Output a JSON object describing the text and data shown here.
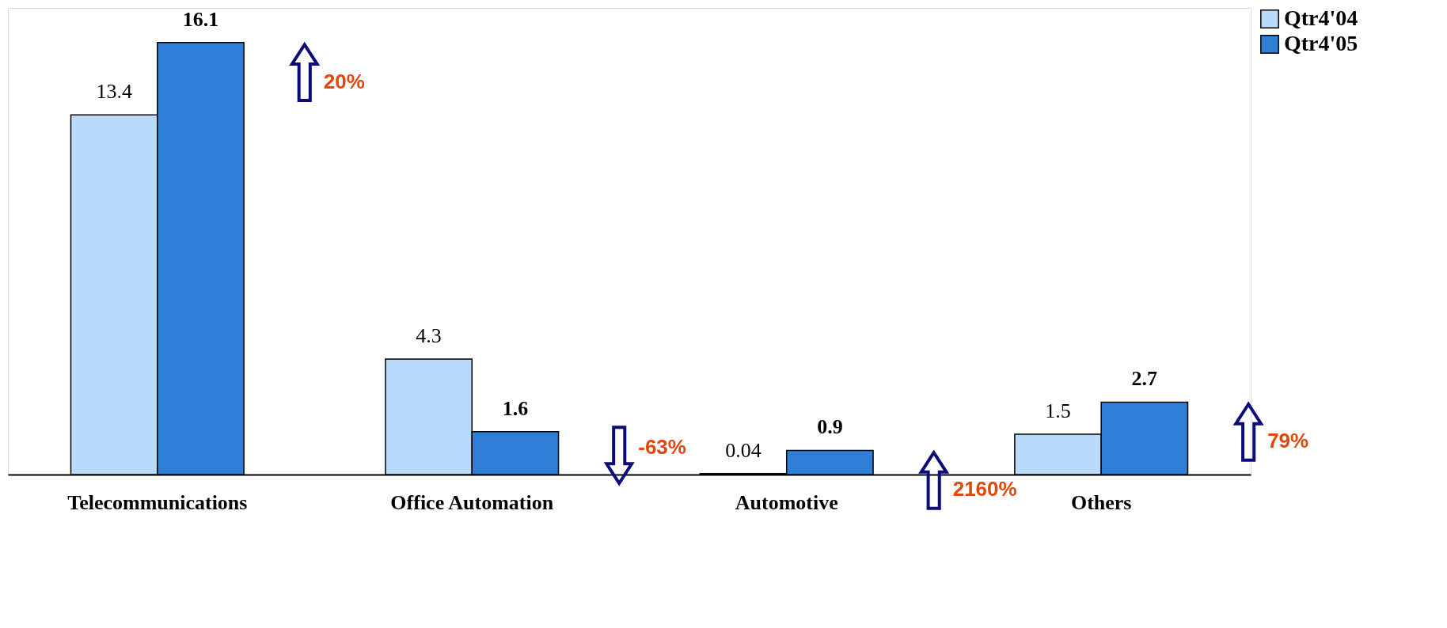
{
  "chart_data": {
    "type": "bar",
    "categories": [
      "Telecommunications",
      "Office Automation",
      "Automotive",
      "Others"
    ],
    "series": [
      {
        "name": "Qtr4'04",
        "color": "#b9dafb",
        "values": [
          13.4,
          4.3,
          0.04,
          1.5
        ]
      },
      {
        "name": "Qtr4'05",
        "color": "#2f7fd6",
        "values": [
          16.1,
          1.6,
          0.9,
          2.7
        ]
      }
    ],
    "data_labels": true,
    "legend": "right",
    "grid": false,
    "annotations": [
      "20%",
      "-63%",
      "2160%",
      "79%"
    ]
  }
}
